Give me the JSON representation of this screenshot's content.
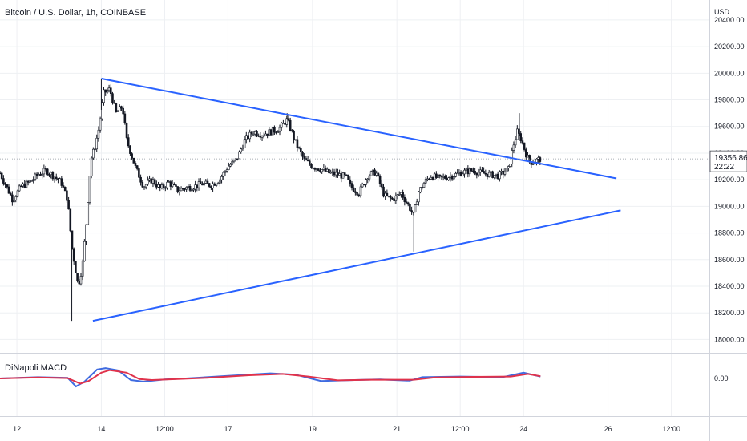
{
  "header": {
    "title": "Bitcoin / U.S. Dollar, 1h, COINBASE",
    "currency": "USD"
  },
  "indicator": {
    "title": "DiNapoli MACD"
  },
  "price_label": {
    "price": "19356.86",
    "countdown": "22:22"
  },
  "colors": {
    "trendline": "#2962ff",
    "macd_line": "#3f6be0",
    "signal_line": "#e0324b",
    "candle": "#131722",
    "grid": "#eef0f3",
    "axis_border": "#d1d4dc"
  },
  "chart_data": [
    {
      "type": "candlestick",
      "title": "Bitcoin / U.S. Dollar, 1h, COINBASE",
      "x_tick_labels": [
        "12",
        "14",
        "12:00",
        "17",
        "19",
        "21",
        "12:00",
        "24",
        "26",
        "12:00"
      ],
      "x_tick_days": [
        12.0,
        14.0,
        15.5,
        17.0,
        19.0,
        21.0,
        22.5,
        24.0,
        26.0,
        27.5
      ],
      "y_tick_labels": [
        "18000.00",
        "18200.00",
        "18400.00",
        "18600.00",
        "18800.00",
        "19000.00",
        "19200.00",
        "19400.00",
        "19600.00",
        "19800.00",
        "20000.00",
        "20200.00",
        "20400.00"
      ],
      "ylim": [
        17900,
        20550
      ],
      "xlim_days": [
        11.6,
        28.4
      ],
      "grid": true,
      "last_price": 19356.86,
      "trendlines": [
        {
          "from": {
            "day": 14.0,
            "price": 19960
          },
          "to": {
            "day": 26.2,
            "price": 19210
          }
        },
        {
          "from": {
            "day": 13.8,
            "price": 18140
          },
          "to": {
            "day": 26.3,
            "price": 18970
          }
        }
      ],
      "price_path": [
        [
          11.6,
          19250
        ],
        [
          11.75,
          19150
        ],
        [
          11.9,
          19050
        ],
        [
          12.1,
          19150
        ],
        [
          12.3,
          19180
        ],
        [
          12.5,
          19240
        ],
        [
          12.7,
          19270
        ],
        [
          12.9,
          19220
        ],
        [
          13.05,
          19180
        ],
        [
          13.2,
          19050
        ],
        [
          13.3,
          18700
        ],
        [
          13.45,
          18400
        ],
        [
          13.55,
          18550
        ],
        [
          13.65,
          18900
        ],
        [
          13.75,
          19350
        ],
        [
          13.85,
          19450
        ],
        [
          13.95,
          19600
        ],
        [
          14.05,
          19850
        ],
        [
          14.2,
          19880
        ],
        [
          14.35,
          19700
        ],
        [
          14.5,
          19750
        ],
        [
          14.6,
          19500
        ],
        [
          14.8,
          19300
        ],
        [
          15.0,
          19150
        ],
        [
          15.2,
          19200
        ],
        [
          15.4,
          19130
        ],
        [
          15.6,
          19180
        ],
        [
          15.8,
          19120
        ],
        [
          16.0,
          19140
        ],
        [
          16.2,
          19150
        ],
        [
          16.4,
          19170
        ],
        [
          16.6,
          19160
        ],
        [
          16.8,
          19200
        ],
        [
          17.0,
          19300
        ],
        [
          17.2,
          19350
        ],
        [
          17.4,
          19500
        ],
        [
          17.6,
          19560
        ],
        [
          17.8,
          19540
        ],
        [
          18.0,
          19560
        ],
        [
          18.2,
          19580
        ],
        [
          18.4,
          19650
        ],
        [
          18.6,
          19480
        ],
        [
          18.8,
          19350
        ],
        [
          19.0,
          19300
        ],
        [
          19.2,
          19280
        ],
        [
          19.4,
          19250
        ],
        [
          19.6,
          19240
        ],
        [
          19.8,
          19220
        ],
        [
          19.9,
          19150
        ],
        [
          20.1,
          19100
        ],
        [
          20.3,
          19230
        ],
        [
          20.5,
          19260
        ],
        [
          20.7,
          19080
        ],
        [
          20.9,
          19050
        ],
        [
          21.1,
          19100
        ],
        [
          21.3,
          18990
        ],
        [
          21.4,
          18930
        ],
        [
          21.5,
          19100
        ],
        [
          21.65,
          19180
        ],
        [
          21.8,
          19230
        ],
        [
          22.0,
          19210
        ],
        [
          22.2,
          19220
        ],
        [
          22.4,
          19240
        ],
        [
          22.6,
          19260
        ],
        [
          22.8,
          19270
        ],
        [
          23.0,
          19250
        ],
        [
          23.2,
          19240
        ],
        [
          23.4,
          19230
        ],
        [
          23.55,
          19260
        ],
        [
          23.65,
          19280
        ],
        [
          23.75,
          19450
        ],
        [
          23.85,
          19560
        ],
        [
          23.95,
          19500
        ],
        [
          24.05,
          19400
        ],
        [
          24.15,
          19330
        ],
        [
          24.25,
          19340
        ],
        [
          24.4,
          19356.86
        ]
      ],
      "spikes": [
        {
          "day": 13.3,
          "low": 18140
        },
        {
          "day": 21.4,
          "low": 18660
        },
        {
          "day": 14.0,
          "high": 19960
        },
        {
          "day": 18.4,
          "high": 19700
        },
        {
          "day": 23.9,
          "high": 19700
        }
      ]
    },
    {
      "type": "line",
      "title": "DiNapoli MACD",
      "y_tick_labels": [
        "0.00"
      ],
      "series": [
        {
          "color_key": "macd_line",
          "points": [
            [
              11.6,
              0.0
            ],
            [
              12.5,
              0.4
            ],
            [
              13.2,
              0.2
            ],
            [
              13.4,
              -2.5
            ],
            [
              13.6,
              -1.0
            ],
            [
              13.9,
              2.8
            ],
            [
              14.1,
              3.2
            ],
            [
              14.4,
              2.5
            ],
            [
              14.7,
              -0.5
            ],
            [
              15.0,
              -1.0
            ],
            [
              15.5,
              -0.3
            ],
            [
              16.0,
              0.0
            ],
            [
              17.0,
              0.8
            ],
            [
              18.0,
              1.6
            ],
            [
              18.6,
              1.2
            ],
            [
              19.2,
              -0.8
            ],
            [
              20.0,
              -0.5
            ],
            [
              20.6,
              -0.3
            ],
            [
              21.3,
              -0.7
            ],
            [
              21.6,
              0.4
            ],
            [
              22.5,
              0.6
            ],
            [
              23.5,
              0.4
            ],
            [
              24.0,
              1.8
            ],
            [
              24.4,
              0.6
            ]
          ]
        },
        {
          "color_key": "signal_line",
          "points": [
            [
              11.6,
              0.0
            ],
            [
              12.5,
              0.3
            ],
            [
              13.2,
              0.1
            ],
            [
              13.5,
              -1.6
            ],
            [
              13.7,
              -0.8
            ],
            [
              14.0,
              1.8
            ],
            [
              14.2,
              2.6
            ],
            [
              14.6,
              1.8
            ],
            [
              14.9,
              -0.2
            ],
            [
              15.2,
              -0.5
            ],
            [
              15.8,
              -0.2
            ],
            [
              16.5,
              0.2
            ],
            [
              17.5,
              1.0
            ],
            [
              18.3,
              1.4
            ],
            [
              18.9,
              0.6
            ],
            [
              19.6,
              -0.6
            ],
            [
              20.4,
              -0.4
            ],
            [
              21.0,
              -0.4
            ],
            [
              21.4,
              -0.4
            ],
            [
              21.9,
              0.3
            ],
            [
              22.8,
              0.5
            ],
            [
              23.7,
              0.6
            ],
            [
              24.1,
              1.4
            ],
            [
              24.4,
              0.7
            ]
          ]
        }
      ]
    }
  ]
}
